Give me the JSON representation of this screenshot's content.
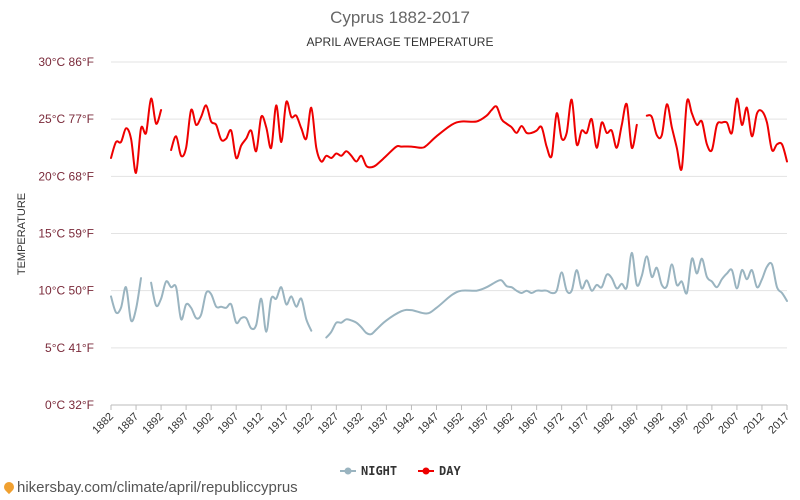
{
  "chart_data": {
    "type": "line",
    "title": "Cyprus 1882-2017",
    "subtitle": "APRIL AVERAGE TEMPERATURE",
    "ylabel": "TEMPERATURE",
    "ylim": [
      0,
      30
    ],
    "yticks": [
      {
        "value": 0,
        "label": "0°C 32°F"
      },
      {
        "value": 5,
        "label": "5°C 41°F"
      },
      {
        "value": 10,
        "label": "10°C 50°F"
      },
      {
        "value": 15,
        "label": "15°C 59°F"
      },
      {
        "value": 20,
        "label": "20°C 68°F"
      },
      {
        "value": 25,
        "label": "25°C 77°F"
      },
      {
        "value": 30,
        "label": "30°C 86°F"
      }
    ],
    "xlim": [
      1882,
      2017
    ],
    "xticks": [
      "1882",
      "1887",
      "1892",
      "1897",
      "1902",
      "1907",
      "1912",
      "1917",
      "1922",
      "1927",
      "1932",
      "1937",
      "1942",
      "1947",
      "1952",
      "1957",
      "1962",
      "1967",
      "1972",
      "1977",
      "1982",
      "1987",
      "1992",
      "1997",
      "2002",
      "2007",
      "2012",
      "2017"
    ],
    "grid": true,
    "legend_position": "bottom-center",
    "series": [
      {
        "name": "NIGHT",
        "color": "#9ab4c0",
        "segments": [
          [
            [
              1882,
              9.5
            ],
            [
              1883,
              8.1
            ],
            [
              1884,
              8.5
            ],
            [
              1885,
              10.3
            ],
            [
              1886,
              7.4
            ],
            [
              1887,
              8.4
            ],
            [
              1888,
              11.1
            ]
          ],
          [
            [
              1890,
              10.7
            ],
            [
              1891,
              8.7
            ],
            [
              1892,
              9.3
            ],
            [
              1893,
              10.8
            ],
            [
              1894,
              10.3
            ],
            [
              1895,
              10.3
            ],
            [
              1896,
              7.5
            ],
            [
              1897,
              8.8
            ],
            [
              1898,
              8.5
            ],
            [
              1899,
              7.6
            ],
            [
              1900,
              7.9
            ],
            [
              1901,
              9.8
            ],
            [
              1902,
              9.7
            ],
            [
              1903,
              8.6
            ],
            [
              1904,
              8.6
            ],
            [
              1905,
              8.5
            ],
            [
              1906,
              8.8
            ],
            [
              1907,
              7.2
            ],
            [
              1908,
              7.6
            ],
            [
              1909,
              7.6
            ],
            [
              1910,
              6.7
            ],
            [
              1911,
              7.0
            ],
            [
              1912,
              9.3
            ],
            [
              1913,
              6.4
            ],
            [
              1914,
              9.3
            ],
            [
              1915,
              9.3
            ],
            [
              1916,
              10.3
            ],
            [
              1917,
              8.8
            ],
            [
              1918,
              9.5
            ],
            [
              1919,
              8.6
            ],
            [
              1920,
              9.3
            ],
            [
              1921,
              7.5
            ],
            [
              1922,
              6.5
            ]
          ],
          [
            [
              1925,
              5.9
            ],
            [
              1926,
              6.4
            ],
            [
              1927,
              7.2
            ],
            [
              1928,
              7.2
            ],
            [
              1929,
              7.5
            ],
            [
              1930,
              7.4
            ],
            [
              1931,
              7.2
            ],
            [
              1932,
              6.8
            ],
            [
              1933,
              6.3
            ],
            [
              1934,
              6.2
            ],
            [
              1935,
              6.6
            ],
            [
              1937,
              7.4
            ],
            [
              1940,
              8.2
            ],
            [
              1942,
              8.3
            ],
            [
              1945,
              8.0
            ],
            [
              1947,
              8.5
            ],
            [
              1950,
              9.6
            ],
            [
              1952,
              10.0
            ],
            [
              1955,
              10.0
            ],
            [
              1957,
              10.3
            ],
            [
              1959,
              10.8
            ],
            [
              1960,
              10.9
            ],
            [
              1961,
              10.4
            ],
            [
              1962,
              10.3
            ],
            [
              1963,
              10.0
            ],
            [
              1964,
              9.8
            ],
            [
              1965,
              10.0
            ],
            [
              1966,
              9.8
            ],
            [
              1967,
              10.0
            ],
            [
              1968,
              10.0
            ],
            [
              1969,
              10.0
            ],
            [
              1970,
              9.8
            ],
            [
              1971,
              10.0
            ],
            [
              1972,
              11.6
            ],
            [
              1973,
              10.0
            ],
            [
              1974,
              10.0
            ],
            [
              1975,
              11.8
            ],
            [
              1976,
              10.2
            ],
            [
              1977,
              10.9
            ],
            [
              1978,
              10.0
            ],
            [
              1979,
              10.5
            ],
            [
              1980,
              10.3
            ],
            [
              1981,
              11.4
            ],
            [
              1982,
              11.1
            ],
            [
              1983,
              10.2
            ],
            [
              1984,
              10.6
            ],
            [
              1985,
              10.3
            ],
            [
              1986,
              13.3
            ],
            [
              1987,
              10.5
            ],
            [
              1988,
              11.3
            ],
            [
              1989,
              13.0
            ],
            [
              1990,
              11.2
            ],
            [
              1991,
              12.0
            ],
            [
              1992,
              10.5
            ],
            [
              1993,
              10.4
            ],
            [
              1994,
              12.3
            ],
            [
              1995,
              10.5
            ],
            [
              1996,
              10.8
            ],
            [
              1997,
              9.8
            ],
            [
              1998,
              12.8
            ],
            [
              1999,
              11.5
            ],
            [
              2000,
              12.8
            ],
            [
              2001,
              11.2
            ],
            [
              2002,
              10.8
            ],
            [
              2003,
              10.3
            ],
            [
              2004,
              11.0
            ],
            [
              2005,
              11.5
            ],
            [
              2006,
              11.8
            ],
            [
              2007,
              10.2
            ],
            [
              2008,
              11.8
            ],
            [
              2009,
              11.0
            ],
            [
              2010,
              11.8
            ],
            [
              2011,
              10.3
            ],
            [
              2012,
              11.0
            ],
            [
              2013,
              12.1
            ],
            [
              2014,
              12.3
            ],
            [
              2015,
              10.3
            ],
            [
              2016,
              9.8
            ],
            [
              2017,
              9.1
            ]
          ]
        ]
      },
      {
        "name": "DAY",
        "color": "#ee0000",
        "segments": [
          [
            [
              1882,
              21.6
            ],
            [
              1883,
              23.0
            ],
            [
              1884,
              23.0
            ],
            [
              1885,
              24.2
            ],
            [
              1886,
              23.3
            ],
            [
              1887,
              20.3
            ],
            [
              1888,
              24.2
            ],
            [
              1889,
              23.8
            ],
            [
              1890,
              26.8
            ],
            [
              1891,
              24.6
            ],
            [
              1892,
              25.8
            ]
          ],
          [
            [
              1894,
              22.3
            ],
            [
              1895,
              23.5
            ],
            [
              1896,
              21.8
            ],
            [
              1897,
              22.5
            ],
            [
              1898,
              25.8
            ],
            [
              1899,
              24.5
            ],
            [
              1900,
              25.2
            ],
            [
              1901,
              26.2
            ],
            [
              1902,
              24.8
            ],
            [
              1903,
              24.5
            ],
            [
              1904,
              23.2
            ],
            [
              1905,
              23.3
            ],
            [
              1906,
              24.0
            ],
            [
              1907,
              21.6
            ],
            [
              1908,
              22.7
            ],
            [
              1909,
              23.3
            ],
            [
              1910,
              24.0
            ],
            [
              1911,
              22.2
            ],
            [
              1912,
              25.2
            ],
            [
              1913,
              24.3
            ],
            [
              1914,
              22.5
            ],
            [
              1915,
              26.2
            ],
            [
              1916,
              23.0
            ],
            [
              1917,
              26.5
            ],
            [
              1918,
              25.2
            ],
            [
              1919,
              25.3
            ],
            [
              1920,
              24.2
            ],
            [
              1921,
              23.3
            ],
            [
              1922,
              26.0
            ],
            [
              1923,
              22.5
            ],
            [
              1924,
              21.3
            ],
            [
              1925,
              21.8
            ],
            [
              1926,
              21.6
            ],
            [
              1927,
              22.0
            ],
            [
              1928,
              21.8
            ],
            [
              1929,
              22.2
            ],
            [
              1930,
              21.8
            ],
            [
              1931,
              21.3
            ],
            [
              1932,
              21.8
            ],
            [
              1933,
              20.9
            ],
            [
              1934,
              20.8
            ],
            [
              1935,
              21.0
            ],
            [
              1937,
              21.8
            ],
            [
              1939,
              22.6
            ],
            [
              1940,
              22.6
            ],
            [
              1942,
              22.6
            ],
            [
              1944,
              22.5
            ],
            [
              1945,
              22.7
            ],
            [
              1947,
              23.5
            ],
            [
              1950,
              24.5
            ],
            [
              1952,
              24.8
            ],
            [
              1955,
              24.8
            ],
            [
              1957,
              25.3
            ],
            [
              1958,
              25.8
            ],
            [
              1959,
              26.1
            ],
            [
              1960,
              25.0
            ],
            [
              1961,
              24.6
            ],
            [
              1962,
              24.3
            ],
            [
              1963,
              23.8
            ],
            [
              1964,
              24.4
            ],
            [
              1965,
              23.8
            ],
            [
              1966,
              23.8
            ],
            [
              1967,
              24.0
            ],
            [
              1968,
              24.3
            ],
            [
              1969,
              22.6
            ],
            [
              1970,
              21.8
            ],
            [
              1971,
              25.5
            ],
            [
              1972,
              23.3
            ],
            [
              1973,
              23.8
            ],
            [
              1974,
              26.7
            ],
            [
              1975,
              22.8
            ],
            [
              1976,
              24.0
            ],
            [
              1977,
              23.8
            ],
            [
              1978,
              25.0
            ],
            [
              1979,
              22.5
            ],
            [
              1980,
              24.7
            ],
            [
              1981,
              23.8
            ],
            [
              1982,
              24.0
            ],
            [
              1983,
              22.5
            ],
            [
              1984,
              24.5
            ],
            [
              1985,
              26.3
            ],
            [
              1986,
              22.5
            ],
            [
              1987,
              24.5
            ]
          ],
          [
            [
              1989,
              25.3
            ],
            [
              1990,
              25.2
            ],
            [
              1991,
              23.6
            ],
            [
              1992,
              23.6
            ],
            [
              1993,
              26.3
            ],
            [
              1994,
              24.3
            ],
            [
              1995,
              22.5
            ],
            [
              1996,
              20.7
            ],
            [
              1997,
              26.5
            ],
            [
              1998,
              25.5
            ],
            [
              1999,
              24.5
            ],
            [
              2000,
              24.8
            ],
            [
              2001,
              22.8
            ],
            [
              2002,
              22.3
            ],
            [
              2003,
              24.5
            ],
            [
              2004,
              24.7
            ],
            [
              2005,
              24.7
            ],
            [
              2006,
              23.8
            ],
            [
              2007,
              26.8
            ],
            [
              2008,
              24.5
            ],
            [
              2009,
              26.0
            ],
            [
              2010,
              23.5
            ],
            [
              2011,
              25.5
            ],
            [
              2012,
              25.7
            ],
            [
              2013,
              24.7
            ],
            [
              2014,
              22.3
            ],
            [
              2015,
              22.8
            ],
            [
              2016,
              22.8
            ],
            [
              2017,
              21.3
            ]
          ]
        ]
      }
    ],
    "source_text": "hikersbay.com/climate/april/republiccyprus"
  }
}
